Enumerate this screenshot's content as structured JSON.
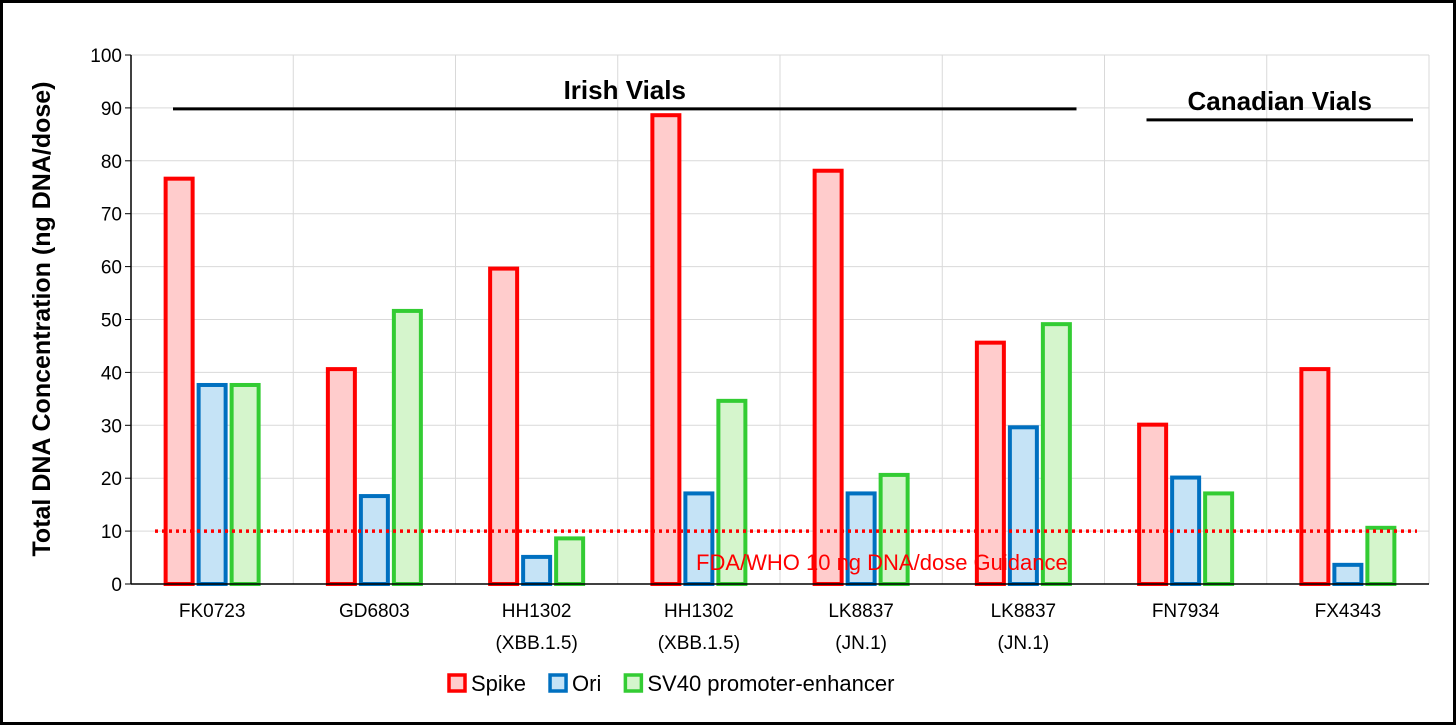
{
  "chart_data": {
    "type": "bar",
    "title": "",
    "xlabel": "",
    "ylabel": "Total DNA Concentration (ng DNA/dose)",
    "ylim": [
      0,
      100
    ],
    "yticks": [
      0,
      10,
      20,
      30,
      40,
      50,
      60,
      70,
      80,
      90,
      100
    ],
    "grid": true,
    "legend_position": "bottom",
    "categories": [
      [
        "FK0723"
      ],
      [
        "GD6803"
      ],
      [
        "HH1302",
        "(XBB.1.5)"
      ],
      [
        "HH1302",
        "(XBB.1.5)"
      ],
      [
        "LK8837",
        "(JN.1)"
      ],
      [
        "LK8837",
        "(JN.1)"
      ],
      [
        "FN7934"
      ],
      [
        "FX4343"
      ]
    ],
    "series": [
      {
        "name": "Spike",
        "edge": "#ff0000",
        "fill": "#ffcccc",
        "values": [
          77,
          41,
          60,
          89,
          78.5,
          46,
          30.5,
          41
        ]
      },
      {
        "name": "Ori",
        "edge": "#0070c0",
        "fill": "#c5e3f6",
        "values": [
          38,
          17,
          5.5,
          17.5,
          17.5,
          30,
          20.5,
          4
        ]
      },
      {
        "name": "SV40 promoter-enhancer",
        "edge": "#33cc33",
        "fill": "#d5f5cc",
        "values": [
          38,
          52,
          9,
          35,
          21,
          49.5,
          17.5,
          11
        ]
      }
    ],
    "reference_line": {
      "value": 10,
      "label": "FDA/WHO 10 ng DNA/dose Guidance",
      "color": "#ff0000"
    },
    "groups": [
      {
        "label": "Irish Vials",
        "from_category": 0,
        "to_category": 5,
        "level": 90
      },
      {
        "label": "Canadian Vials",
        "from_category": 6,
        "to_category": 7,
        "level": 90
      }
    ]
  }
}
